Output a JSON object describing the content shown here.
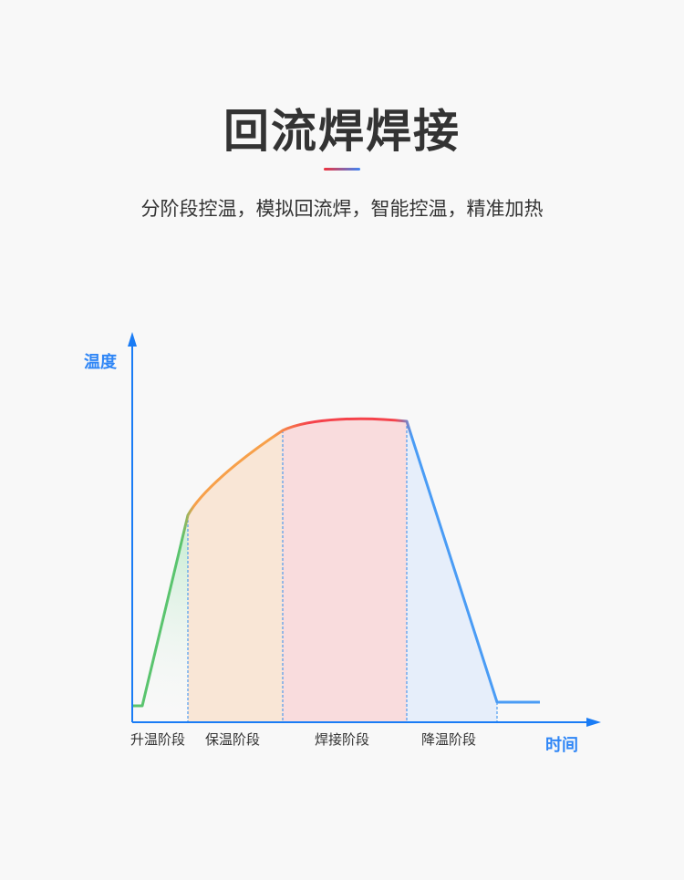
{
  "title": "回流焊焊接",
  "subtitle": "分阶段控温，模拟回流焊，智能控温，精准加热",
  "diagram": {
    "y_axis_label": "温度",
    "x_axis_label": "时间",
    "stages": [
      "升温阶段",
      "保温阶段",
      "焊接阶段",
      "降温阶段"
    ],
    "colors": {
      "axis": "#1a7cf5",
      "heat": "#5ac46e",
      "soak": "#f7a04a",
      "reflow": "#f5434b",
      "cool": "#4a9cf5",
      "soak_fill": "#f9e6d6",
      "reflow_fill": "#f9dcdd",
      "cool_fill": "#e6eefa",
      "heat_fill": "#d6eedc"
    }
  }
}
